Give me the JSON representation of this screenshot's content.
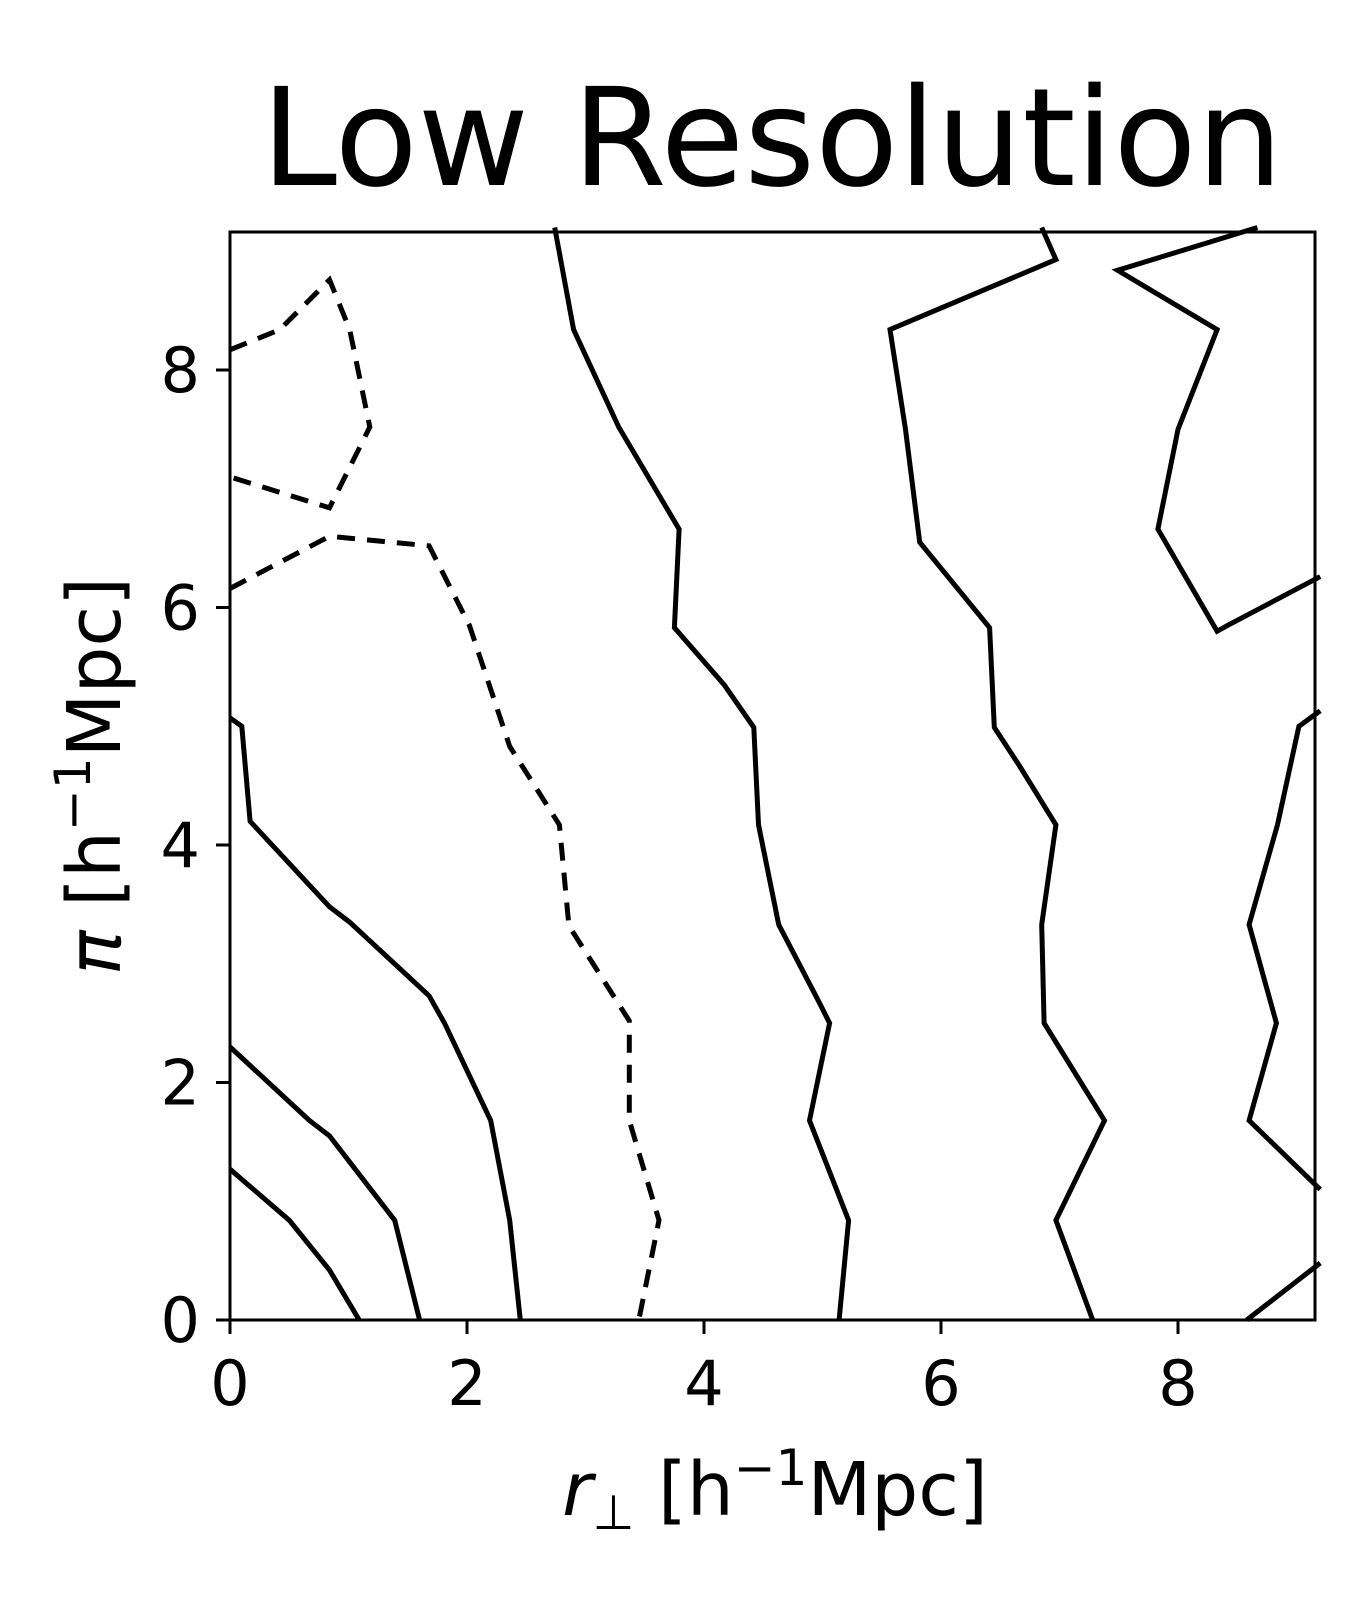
{
  "chart_data": {
    "type": "contour",
    "title": "Low Resolution",
    "xlabel": "r_⊥ [h⁻¹Mpc]",
    "ylabel": "π [h⁻¹Mpc]",
    "xlabel_parts": {
      "var": "r",
      "sub": "⊥",
      "unit_pre": " [h",
      "sup": "−1",
      "unit_post": "Mpc]"
    },
    "ylabel_parts": {
      "var": "π",
      "unit_pre": " [h",
      "sup": "−1",
      "unit_post": "Mpc]"
    },
    "xlim": [
      0,
      9.2
    ],
    "ylim": [
      0,
      9.2
    ],
    "xticks": [
      "0",
      "2",
      "4",
      "6",
      "8"
    ],
    "yticks": [
      "0",
      "2",
      "4",
      "6",
      "8"
    ],
    "grid": false,
    "legend": null,
    "line_color": "#000000",
    "contours": [
      {
        "style": "solid",
        "points": [
          [
            0,
            1.27
          ],
          [
            0.5,
            0.84
          ],
          [
            0.84,
            0.42
          ],
          [
            1.09,
            0
          ]
        ]
      },
      {
        "style": "solid",
        "points": [
          [
            0,
            2.3
          ],
          [
            0.67,
            1.68
          ],
          [
            0.84,
            1.55
          ],
          [
            1.39,
            0.84
          ],
          [
            1.6,
            0
          ]
        ]
      },
      {
        "style": "solid",
        "points": [
          [
            0,
            5.07
          ],
          [
            0.1,
            5.0
          ],
          [
            0.17,
            4.2
          ],
          [
            0.84,
            3.48
          ],
          [
            1.01,
            3.35
          ],
          [
            1.68,
            2.73
          ],
          [
            1.81,
            2.5
          ],
          [
            2.2,
            1.68
          ],
          [
            2.36,
            0.84
          ],
          [
            2.45,
            0
          ]
        ]
      },
      {
        "style": "dashed",
        "points": [
          [
            0,
            8.17
          ],
          [
            0.42,
            8.34
          ],
          [
            0.84,
            8.76
          ],
          [
            1.01,
            8.34
          ],
          [
            1.18,
            7.52
          ],
          [
            0.84,
            6.84
          ],
          [
            0,
            7.1
          ]
        ]
      },
      {
        "style": "dashed",
        "points": [
          [
            0,
            6.16
          ],
          [
            0.84,
            6.6
          ],
          [
            1.68,
            6.52
          ],
          [
            2.02,
            5.85
          ],
          [
            2.36,
            4.83
          ],
          [
            2.78,
            4.17
          ],
          [
            2.86,
            3.32
          ],
          [
            3.37,
            2.52
          ],
          [
            3.37,
            1.68
          ],
          [
            3.62,
            0.84
          ],
          [
            3.45,
            0
          ]
        ]
      },
      {
        "style": "solid",
        "points": [
          [
            2.74,
            9.2
          ],
          [
            2.9,
            8.34
          ],
          [
            3.28,
            7.52
          ],
          [
            3.79,
            6.66
          ],
          [
            3.75,
            5.83
          ],
          [
            4.17,
            5.35
          ],
          [
            4.42,
            4.99
          ],
          [
            4.46,
            4.17
          ],
          [
            4.63,
            3.33
          ],
          [
            4.97,
            2.68
          ],
          [
            5.06,
            2.5
          ],
          [
            4.89,
            1.68
          ],
          [
            5.22,
            0.84
          ],
          [
            5.14,
            0
          ]
        ]
      },
      {
        "style": "solid",
        "points": [
          [
            6.85,
            9.2
          ],
          [
            6.97,
            8.93
          ],
          [
            5.57,
            8.34
          ],
          [
            5.7,
            7.5
          ],
          [
            5.82,
            6.55
          ],
          [
            6.41,
            5.83
          ],
          [
            6.45,
            4.99
          ],
          [
            6.66,
            4.67
          ],
          [
            6.97,
            4.17
          ],
          [
            6.85,
            3.33
          ],
          [
            6.87,
            2.5
          ],
          [
            7.38,
            1.68
          ],
          [
            6.97,
            0.84
          ],
          [
            7.28,
            0
          ]
        ]
      },
      {
        "style": "solid",
        "points": [
          [
            8.67,
            9.2
          ],
          [
            7.49,
            8.84
          ],
          [
            8.33,
            8.34
          ],
          [
            8.0,
            7.5
          ],
          [
            7.83,
            6.66
          ],
          [
            8.33,
            5.8
          ],
          [
            8.42,
            5.85
          ],
          [
            9.2,
            6.26
          ]
        ]
      },
      {
        "style": "solid",
        "points": [
          [
            9.2,
            5.13
          ],
          [
            9.02,
            5.0
          ],
          [
            8.84,
            4.17
          ],
          [
            8.6,
            3.33
          ],
          [
            8.83,
            2.5
          ],
          [
            8.6,
            1.68
          ],
          [
            9.2,
            1.1
          ]
        ]
      },
      {
        "style": "solid",
        "points": [
          [
            8.58,
            0
          ],
          [
            9.2,
            0.48
          ]
        ]
      }
    ]
  }
}
